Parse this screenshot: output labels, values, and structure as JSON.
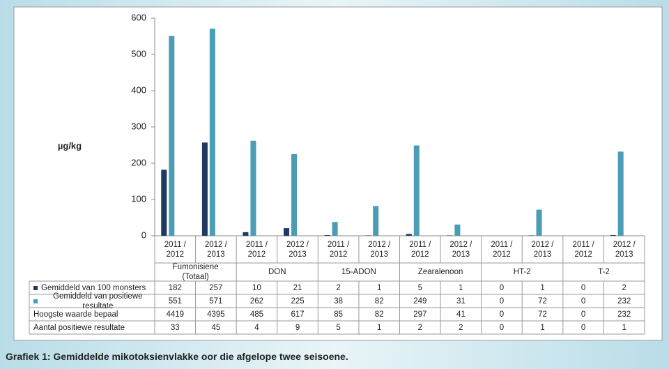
{
  "chart_data": {
    "type": "bar",
    "caption": "Grafiek 1: Gemiddelde mikotoksienvlakke oor die afgelope twee seisoene.",
    "y_label": "µg/kg",
    "categories": [
      "2011 / 2012",
      "2012 / 2013",
      "2011 / 2012",
      "2012 / 2013",
      "2011 / 2012",
      "2012 / 2013",
      "2011 / 2012",
      "2012 / 2013",
      "2011 / 2012",
      "2012 / 2013",
      "2011 / 2012",
      "2012 / 2013"
    ],
    "groups": [
      "Fumonisiene (Totaal)",
      "DON",
      "15-ADON",
      "Zearalenoon",
      "HT-2",
      "T-2"
    ],
    "series": [
      {
        "name": "Gemiddeld van 100 monsters",
        "color": "#1f3a5f",
        "values": [
          182,
          257,
          10,
          21,
          2,
          1,
          5,
          1,
          0,
          1,
          0,
          2
        ]
      },
      {
        "name": "Gemiddeld van positiewe resultate",
        "color": "#4a9db5",
        "values": [
          551,
          571,
          262,
          225,
          38,
          82,
          249,
          31,
          0,
          72,
          0,
          232
        ]
      }
    ],
    "table_rows": [
      {
        "name": "Hoogste waarde bepaal",
        "values": [
          4419,
          4395,
          485,
          617,
          85,
          82,
          297,
          41,
          0,
          72,
          0,
          232
        ]
      },
      {
        "name": "Aantal positiewe resultate",
        "values": [
          33,
          45,
          4,
          9,
          5,
          1,
          2,
          2,
          0,
          1,
          0,
          1
        ]
      }
    ],
    "ylim": [
      0,
      600
    ],
    "yticks": [
      0,
      100,
      200,
      300,
      400,
      500,
      600
    ],
    "grid": false
  }
}
